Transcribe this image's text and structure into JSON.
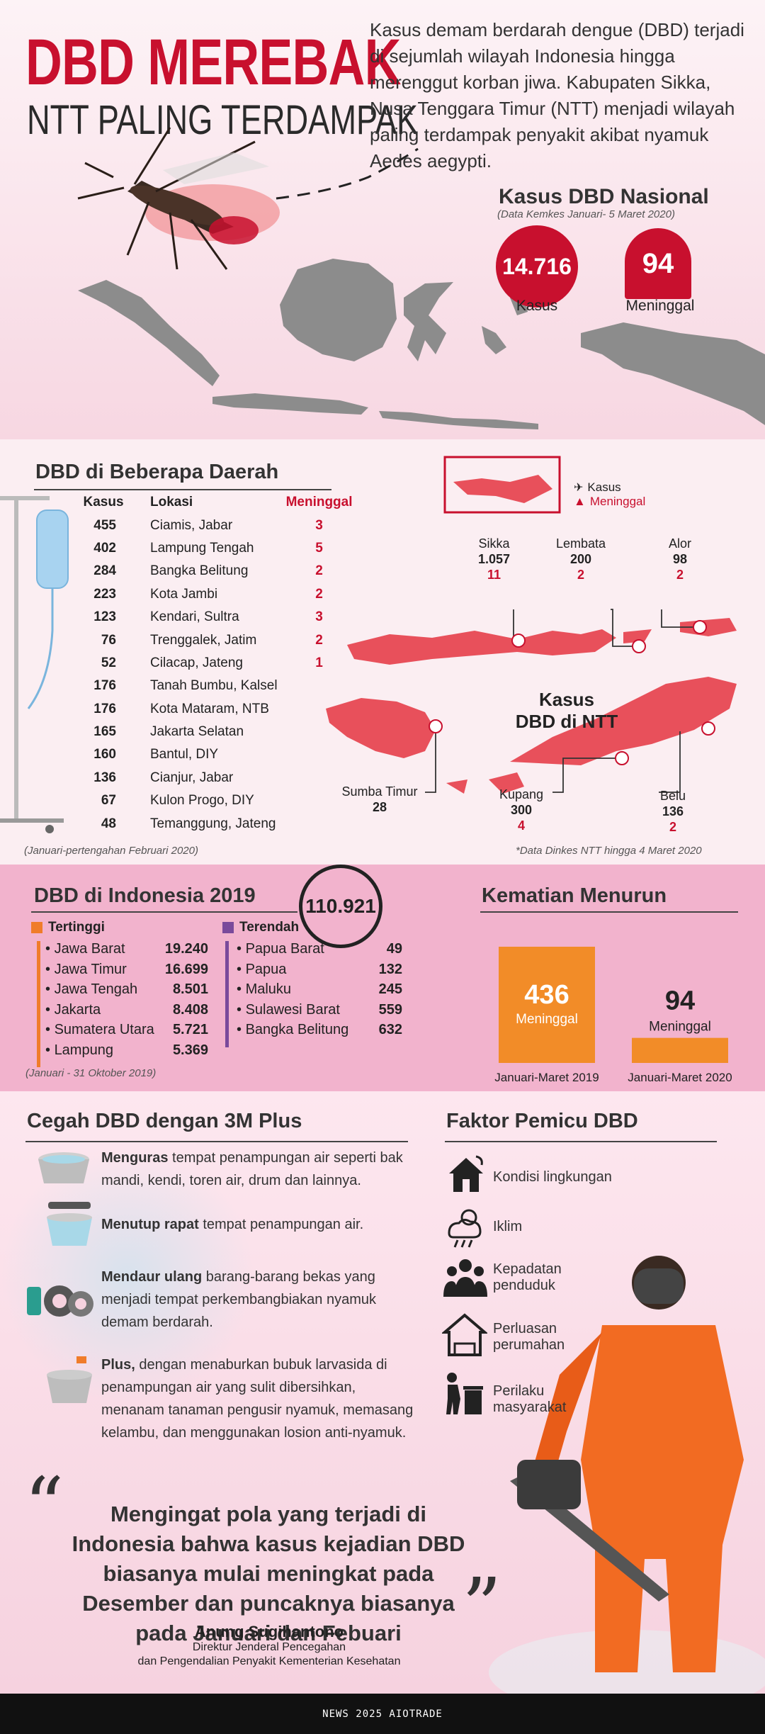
{
  "header": {
    "title": "DBD MEREBAK",
    "subtitle": "NTT PALING TERDAMPAK",
    "intro": "Kasus demam berdarah dengue (DBD) terjadi di sejumlah wilayah Indonesia hingga merenggut korban jiwa. Kabupaten Sikka, Nusa Tenggara Timur (NTT) menjadi wilayah paling terdampak penyakit akibat nyamuk Aedes aegypti."
  },
  "nasional": {
    "title": "Kasus DBD Nasional",
    "source": "(Data Kemkes Januari- 5 Maret 2020)",
    "kasus_value": "14.716",
    "kasus_label": "Kasus",
    "meninggal_value": "94",
    "meninggal_label": "Meninggal"
  },
  "daerah": {
    "title": "DBD di Beberapa Daerah",
    "headers": [
      "Kasus",
      "Lokasi",
      "Meninggal"
    ],
    "rows": [
      {
        "kasus": "455",
        "lokasi": "Ciamis, Jabar",
        "meninggal": "3"
      },
      {
        "kasus": "402",
        "lokasi": "Lampung Tengah",
        "meninggal": "5"
      },
      {
        "kasus": "284",
        "lokasi": "Bangka Belitung",
        "meninggal": "2"
      },
      {
        "kasus": "223",
        "lokasi": "Kota Jambi",
        "meninggal": "2"
      },
      {
        "kasus": "123",
        "lokasi": "Kendari, Sultra",
        "meninggal": "3"
      },
      {
        "kasus": "76",
        "lokasi": "Trenggalek, Jatim",
        "meninggal": "2"
      },
      {
        "kasus": "52",
        "lokasi": "Cilacap, Jateng",
        "meninggal": "1"
      },
      {
        "kasus": "176",
        "lokasi": "Tanah Bumbu, Kalsel",
        "meninggal": ""
      },
      {
        "kasus": "176",
        "lokasi": "Kota Mataram, NTB",
        "meninggal": ""
      },
      {
        "kasus": "165",
        "lokasi": "Jakarta Selatan",
        "meninggal": ""
      },
      {
        "kasus": "160",
        "lokasi": "Bantul, DIY",
        "meninggal": ""
      },
      {
        "kasus": "136",
        "lokasi": "Cianjur, Jabar",
        "meninggal": ""
      },
      {
        "kasus": "67",
        "lokasi": "Kulon Progo, DIY",
        "meninggal": ""
      },
      {
        "kasus": "48",
        "lokasi": "Temanggung, Jateng",
        "meninggal": ""
      }
    ],
    "note": "(Januari-pertengahan Februari 2020)"
  },
  "ntt": {
    "legend_kasus": "Kasus",
    "legend_meninggal": "Meninggal",
    "title": "Kasus\nDBD di NTT",
    "sikka": {
      "name": "Sikka",
      "kasus": "1.057",
      "meninggal": "11"
    },
    "lembata": {
      "name": "Lembata",
      "kasus": "200",
      "meninggal": "2"
    },
    "alor": {
      "name": "Alor",
      "kasus": "98",
      "meninggal": "2"
    },
    "sumba": {
      "name": "Sumba Timur",
      "kasus": "28"
    },
    "kupang": {
      "name": "Kupang",
      "kasus": "300",
      "meninggal": "4"
    },
    "belu": {
      "name": "Belu",
      "kasus": "136",
      "meninggal": "2"
    },
    "note": "*Data Dinkes NTT hingga 4 Maret 2020"
  },
  "indo2019": {
    "title": "DBD di Indonesia 2019",
    "total": "110.921",
    "tertinggi_label": "Tertinggi",
    "tertinggi": [
      {
        "name": "Jawa Barat",
        "value": "19.240"
      },
      {
        "name": "Jawa Timur",
        "value": "16.699"
      },
      {
        "name": "Jawa Tengah",
        "value": "8.501"
      },
      {
        "name": "Jakarta",
        "value": "8.408"
      },
      {
        "name": "Sumatera Utara",
        "value": "5.721"
      },
      {
        "name": "Lampung",
        "value": "5.369"
      }
    ],
    "terendah_label": "Terendah",
    "terendah": [
      {
        "name": "Papua Barat",
        "value": "49"
      },
      {
        "name": "Papua",
        "value": "132"
      },
      {
        "name": "Maluku",
        "value": "245"
      },
      {
        "name": "Sulawesi Barat",
        "value": "559"
      },
      {
        "name": "Bangka Belitung",
        "value": "632"
      }
    ],
    "note": "(Januari - 31 Oktober 2019)",
    "colors": {
      "tertinggi": "#f07c2a",
      "terendah": "#7a4a9b"
    }
  },
  "kematian": {
    "title": "Kematian Menurun",
    "bars": [
      {
        "value": "436",
        "label": "Meninggal",
        "period": "Januari-Maret 2019"
      },
      {
        "value": "94",
        "label": "Meninggal",
        "period": "Januari-Maret 2020"
      }
    ],
    "bar_color": "#f28c28"
  },
  "cegah": {
    "title": "Cegah DBD dengan 3M Plus",
    "items": [
      {
        "bold": "Menguras",
        "text": " tempat penampungan air seperti bak mandi, kendi, toren air, drum dan lainnya."
      },
      {
        "bold": "Menutup rapat",
        "text": " tempat penampungan air."
      },
      {
        "bold": "Mendaur ulang",
        "text": " barang-barang bekas yang menjadi tempat perkembangbiakan nyamuk demam berdarah."
      },
      {
        "bold": "Plus,",
        "text": " dengan menaburkan bubuk larvasida di penampungan air yang sulit dibersihkan, menanam tanaman pengusir nyamuk, memasang kelambu, dan menggunakan losion anti-nyamuk."
      }
    ]
  },
  "faktor": {
    "title": "Faktor Pemicu DBD",
    "items": [
      {
        "label": "Kondisi lingkungan",
        "icon": "house-icon"
      },
      {
        "label": "Iklim",
        "icon": "weather-icon"
      },
      {
        "label": "Kepadatan penduduk",
        "icon": "people-icon"
      },
      {
        "label": "Perluasan perumahan",
        "icon": "housing-icon"
      },
      {
        "label": "Perilaku masyarakat",
        "icon": "trash-person-icon"
      }
    ]
  },
  "quote": {
    "text": "Mengingat pola yang terjadi di Indonesia bahwa kasus kejadian DBD biasanya mulai meningkat pada Desember dan puncaknya biasanya pada Januari dan Febuari",
    "name": "Anung Sugihantono",
    "role1": "Direktur Jenderal Pencegahan",
    "role2": "dan Pengendalian Penyakit Kementerian Kesehatan"
  },
  "footer": {
    "text": "NEWS 2025 AIOTRADE"
  },
  "colors": {
    "accent_red": "#c8102e",
    "map_gray": "#8c8c8c",
    "ntt_red": "#e8505b",
    "pink_band": "#f2b3cd"
  }
}
